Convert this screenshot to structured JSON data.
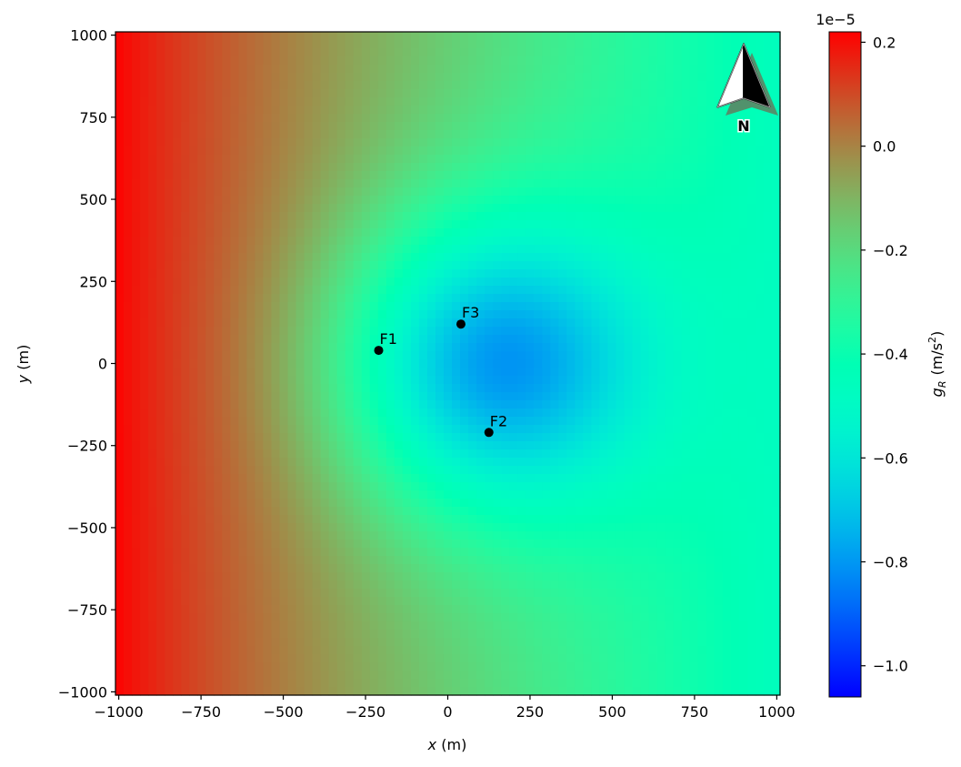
{
  "chart_data": {
    "type": "heatmap",
    "xlabel_var": "x",
    "xlabel_unit": "(m)",
    "ylabel_var": "y",
    "ylabel_unit": "(m)",
    "xlim": [
      -1010,
      1010
    ],
    "ylim": [
      -1010,
      1010
    ],
    "x_ticks": [
      -1000,
      -750,
      -500,
      -250,
      0,
      250,
      500,
      750,
      1000
    ],
    "x_tick_labels": [
      "−1000",
      "−750",
      "−500",
      "−250",
      "0",
      "250",
      "500",
      "750",
      "1000"
    ],
    "y_ticks": [
      1000,
      750,
      500,
      250,
      0,
      -250,
      -500,
      -750,
      -1000
    ],
    "y_tick_labels": [
      "1000",
      "750",
      "500",
      "250",
      "0",
      "−250",
      "−500",
      "−750",
      "−1000"
    ],
    "grid": false,
    "colormap": "rainbow",
    "field": {
      "grid_size": 81,
      "background_at_left_edge": 2.2e-06,
      "background_at_right_edge": -4.6e-06,
      "anomaly_center": [
        130,
        0
      ],
      "anomaly_amplitude": -6e-06,
      "anomaly_radius": 330
    },
    "points": [
      {
        "label": "F1",
        "x": -210,
        "y": 40
      },
      {
        "label": "F2",
        "x": 125,
        "y": -210
      },
      {
        "label": "F3",
        "x": 40,
        "y": 120
      }
    ],
    "north_arrow": {
      "label": "N",
      "placement": "top-right"
    },
    "colorbar": {
      "label_var": "g",
      "label_sub": "R",
      "label_unit_pre": "(m/s",
      "label_unit_sup": "2",
      "label_unit_post": ")",
      "offset_text": "1e−5",
      "vmin": -1.06e-05,
      "vmax": 2.2e-06,
      "ticks": [
        0.2,
        0.0,
        -0.2,
        -0.4,
        -0.6,
        -0.8,
        -1.0
      ],
      "tick_labels": [
        "0.2",
        "0.0",
        "−0.2",
        "−0.4",
        "−0.6",
        "−0.8",
        "−1.0"
      ],
      "scale": 1e-05
    }
  }
}
